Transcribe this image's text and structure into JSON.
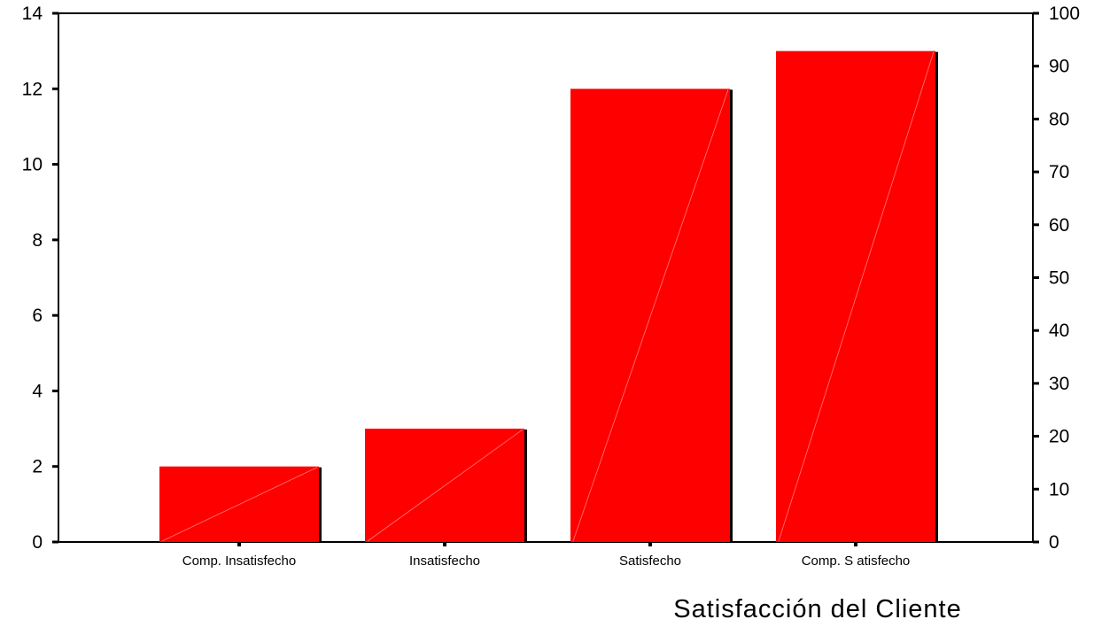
{
  "chart_data": {
    "type": "bar",
    "categories": [
      "Comp. Insatisfecho",
      "Insatisfecho",
      "Satisfecho",
      "Comp. S atisfecho"
    ],
    "values": [
      2,
      3,
      12,
      13
    ],
    "xlabel": "Satisfacción del Cliente",
    "ylabel": "",
    "ylim": [
      0,
      14
    ],
    "yticks": [
      0,
      2,
      4,
      6,
      8,
      10,
      12,
      14
    ],
    "y2lim": [
      0,
      100
    ],
    "y2ticks": [
      0,
      10,
      20,
      30,
      40,
      50,
      60,
      70,
      80,
      90,
      100
    ],
    "bar_color": "#ff0000",
    "grid": false,
    "legend": "none"
  }
}
